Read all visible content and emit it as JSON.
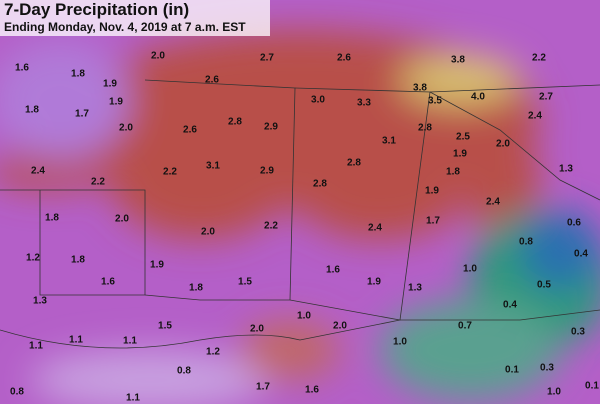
{
  "header": {
    "title": "7-Day Precipitation (in)",
    "subtitle": "Ending Monday, Nov. 4, 2019 at 7 a.m. EST"
  },
  "map": {
    "labels": [
      "1.6",
      "1.8",
      "2.0",
      "2.7",
      "2.6",
      "3.8",
      "2.2",
      "1.9",
      "2.6",
      "3.8",
      "1.8",
      "1.7",
      "1.9",
      "3.0",
      "3.3",
      "3.5",
      "4.0",
      "2.7",
      "2.0",
      "2.6",
      "2.8",
      "2.9",
      "2.8",
      "2.4",
      "3.1",
      "2.5",
      "2.0",
      "1.9",
      "2.4",
      "2.2",
      "2.2",
      "3.1",
      "2.9",
      "2.8",
      "1.8",
      "1.3",
      "2.8",
      "1.9",
      "1.8",
      "2.0",
      "2.0",
      "2.2",
      "2.4",
      "1.7",
      "2.4",
      "0.6",
      "1.2",
      "1.8",
      "1.9",
      "0.8",
      "0.4",
      "1.6",
      "1.0",
      "1.6",
      "1.8",
      "1.5",
      "1.9",
      "1.3",
      "0.5",
      "1.3",
      "0.4",
      "1.0",
      "1.5",
      "2.0",
      "2.0",
      "0.7",
      "0.3",
      "1.1",
      "1.1",
      "1.1",
      "1.2",
      "1.0",
      "0.8",
      "0.1",
      "0.3",
      "0.8",
      "1.1",
      "1.7",
      "1.6",
      "1.0",
      "0.1"
    ]
  }
}
